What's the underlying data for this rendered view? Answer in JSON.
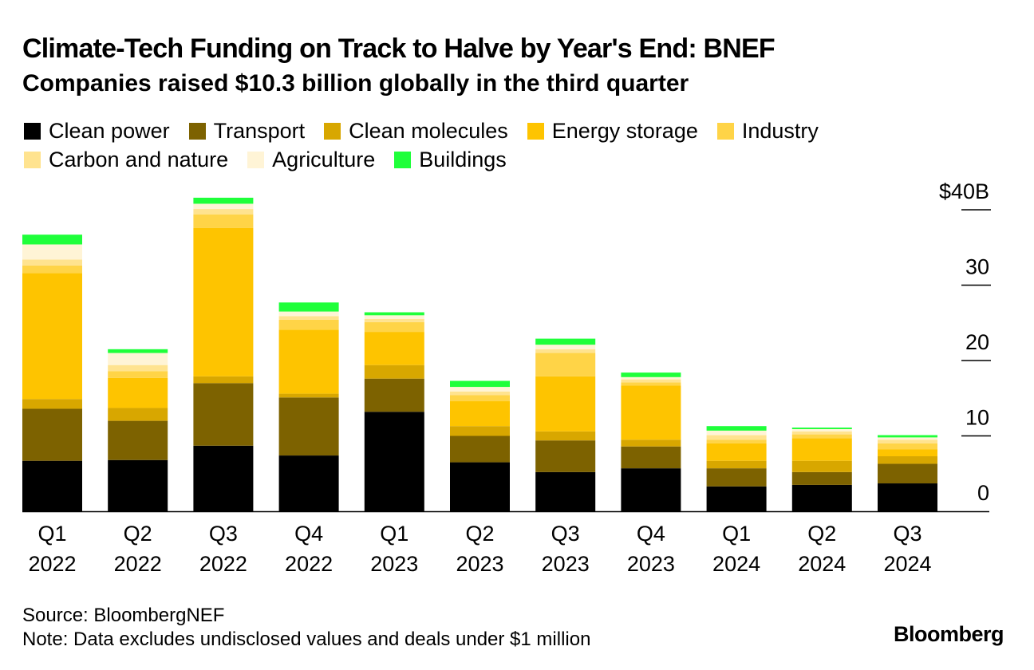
{
  "chart_data": {
    "type": "bar",
    "stacked": true,
    "title": "Climate-Tech Funding on Track to Halve by Year's End: BNEF",
    "subtitle": "Companies raised $10.3 billion globally in the third quarter",
    "categories": [
      [
        "Q1",
        "2022"
      ],
      [
        "Q2",
        "2022"
      ],
      [
        "Q3",
        "2022"
      ],
      [
        "Q4",
        "2022"
      ],
      [
        "Q1",
        "2023"
      ],
      [
        "Q2",
        "2023"
      ],
      [
        "Q3",
        "2023"
      ],
      [
        "Q4",
        "2023"
      ],
      [
        "Q1",
        "2024"
      ],
      [
        "Q2",
        "2024"
      ],
      [
        "Q3",
        "2024"
      ]
    ],
    "series": [
      {
        "name": "Clean power",
        "color": "#000000",
        "values": [
          6.7,
          6.8,
          8.7,
          7.4,
          13.2,
          6.5,
          5.2,
          5.7,
          3.3,
          3.5,
          3.7
        ]
      },
      {
        "name": "Transport",
        "color": "#7d6200",
        "values": [
          6.9,
          5.2,
          8.3,
          7.7,
          4.4,
          3.5,
          4.2,
          2.9,
          2.4,
          1.7,
          2.6
        ]
      },
      {
        "name": "Clean molecules",
        "color": "#d8a700",
        "values": [
          1.3,
          1.7,
          0.9,
          0.5,
          1.8,
          1.3,
          1.2,
          0.9,
          1.0,
          1.5,
          1.0
        ]
      },
      {
        "name": "Energy storage",
        "color": "#fec400",
        "values": [
          16.7,
          4.0,
          19.7,
          8.5,
          4.4,
          3.3,
          7.3,
          7.2,
          2.3,
          3.0,
          0.9
        ]
      },
      {
        "name": "Industry",
        "color": "#ffd447",
        "values": [
          1.0,
          0.9,
          1.8,
          1.3,
          1.3,
          0.8,
          3.1,
          0.4,
          0.5,
          0.5,
          0.8
        ]
      },
      {
        "name": "Carbon and nature",
        "color": "#ffe38f",
        "values": [
          0.8,
          0.8,
          0.7,
          0.5,
          0.4,
          0.5,
          0.5,
          0.4,
          0.6,
          0.4,
          0.5
        ]
      },
      {
        "name": "Agriculture",
        "color": "#fff4d6",
        "values": [
          2.0,
          1.6,
          0.7,
          0.6,
          0.5,
          0.6,
          0.6,
          0.3,
          0.6,
          0.3,
          0.3
        ]
      },
      {
        "name": "Buildings",
        "color": "#1fff3a",
        "values": [
          1.3,
          0.5,
          0.8,
          1.2,
          0.4,
          0.8,
          0.8,
          0.6,
          0.6,
          0.2,
          0.3
        ]
      }
    ],
    "y_axis": {
      "ticks": [
        0,
        10,
        20,
        30,
        40
      ],
      "tick_labels": [
        "0",
        "10",
        "20",
        "30",
        "$40B"
      ],
      "ylim": [
        0,
        40
      ],
      "position": "right"
    },
    "grid": false,
    "legend_position": "top"
  },
  "footer": {
    "source": "Source: BloombergNEF",
    "note": "Note: Data excludes undisclosed values and deals under $1 million",
    "brand": "Bloomberg"
  }
}
